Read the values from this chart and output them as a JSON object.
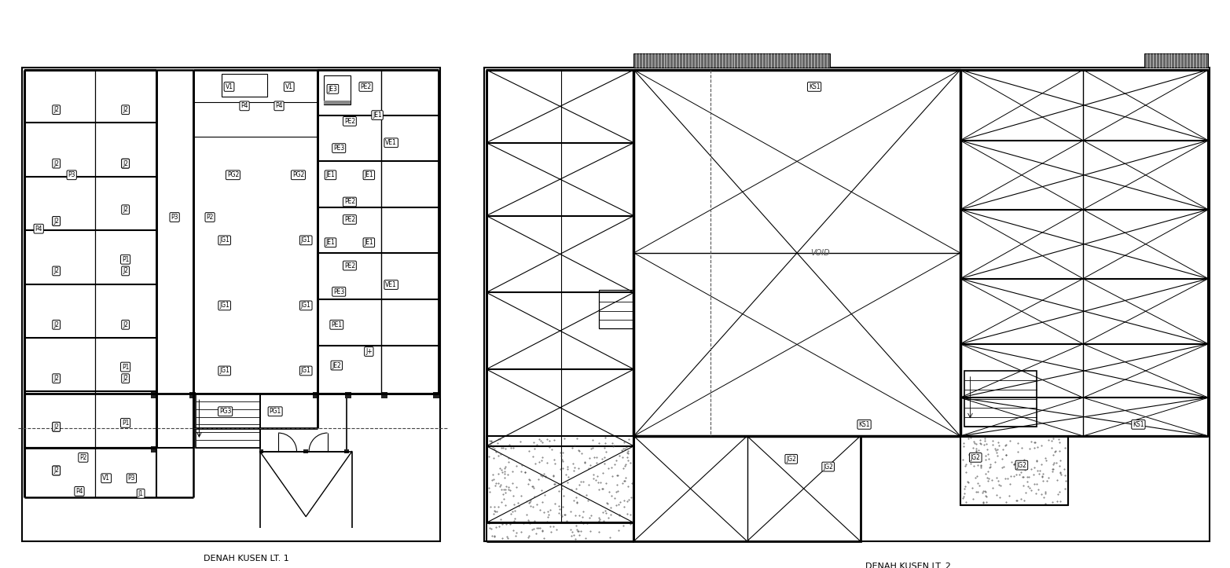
{
  "bg_color": "#ffffff",
  "line_color": "#000000",
  "label1": "DENAH KUSEN LT. 1",
  "label2": "DENAH KUSEN LT. 2",
  "void_text": "VOID"
}
